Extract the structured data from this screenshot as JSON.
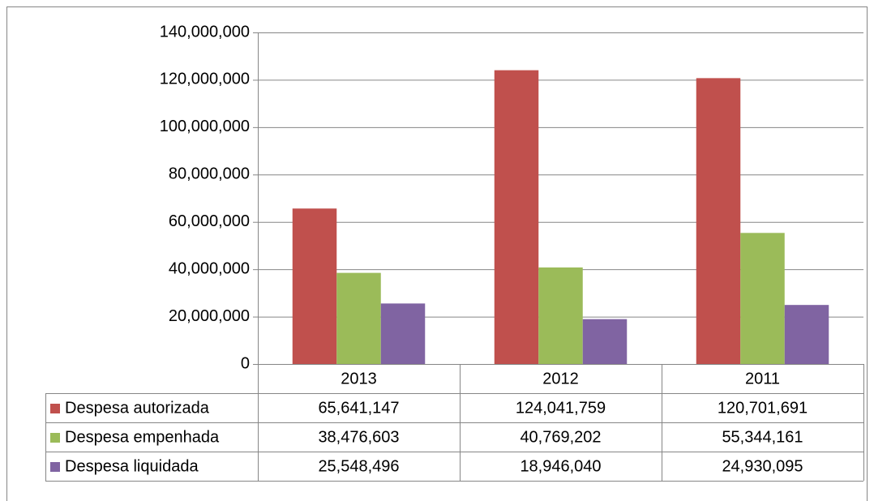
{
  "chart_data": {
    "type": "bar",
    "categories": [
      "2013",
      "2012",
      "2011"
    ],
    "series": [
      {
        "name": "Despesa autorizada",
        "color": "#c0504d",
        "values": [
          65641147,
          124041759,
          120701691
        ],
        "value_labels": [
          "65,641,147",
          "124,041,759",
          "120,701,691"
        ]
      },
      {
        "name": "Despesa empenhada",
        "color": "#9bbb59",
        "values": [
          38476603,
          40769202,
          55344161
        ],
        "value_labels": [
          "38,476,603",
          "40,769,202",
          "55,344,161"
        ]
      },
      {
        "name": "Despesa liquidada",
        "color": "#8064a2",
        "values": [
          25548496,
          18946040,
          24930095
        ],
        "value_labels": [
          "25,548,496",
          "18,946,040",
          "24,930,095"
        ]
      }
    ],
    "ylim": [
      0,
      140000000
    ],
    "yticks": [
      0,
      {
        "value": 20000000,
        "label": "20,000,000"
      },
      {
        "value": 40000000,
        "label": "40,000,000"
      },
      {
        "value": 60000000,
        "label": "60,000,000"
      },
      {
        "value": 80000000,
        "label": "80,000,000"
      },
      {
        "value": 100000000,
        "label": "100,000,000"
      },
      {
        "value": 120000000,
        "label": "120,000,000"
      },
      {
        "value": 140000000,
        "label": "140,000,000"
      }
    ],
    "grid": true,
    "data_table": true
  }
}
